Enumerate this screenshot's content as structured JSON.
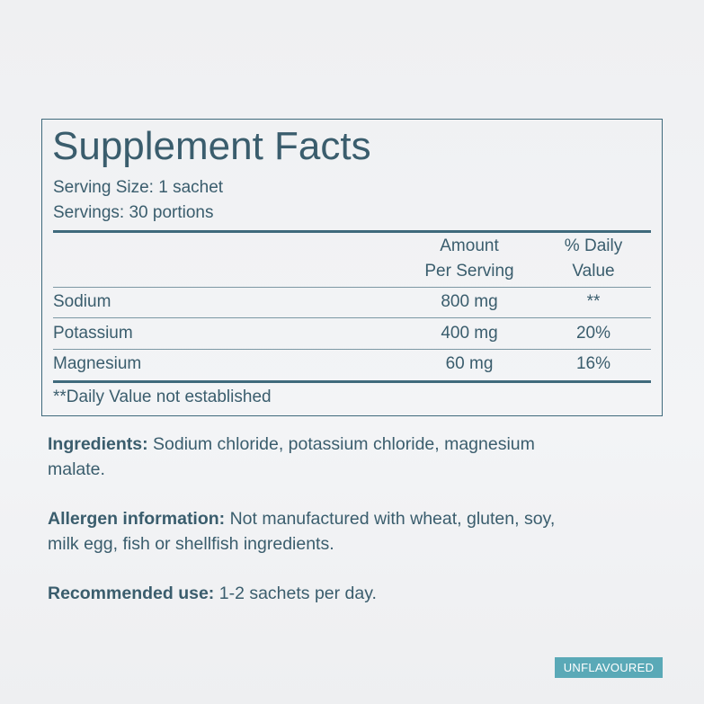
{
  "facts": {
    "title": "Supplement Facts",
    "serving_size": "Serving Size: 1 sachet",
    "servings": "Servings: 30 portions",
    "header": {
      "amount": [
        "Amount",
        "Per Serving"
      ],
      "daily_value": [
        "% Daily",
        "Value"
      ]
    },
    "rows": [
      [
        "Sodium",
        "800 mg",
        "**"
      ],
      [
        "Potassium",
        "400 mg",
        "20%"
      ],
      [
        "Magnesium",
        "60 mg",
        "16%"
      ]
    ],
    "footnote": "**Daily Value not established"
  },
  "info": [
    {
      "label": "Ingredients:",
      "lines": [
        "Sodium chloride, potassium chloride, magnesium",
        "malate."
      ]
    },
    {
      "label": "Allergen information:",
      "lines": [
        "Not manufactured with wheat, gluten, soy,",
        "milk egg, fish or shellfish ingredients."
      ]
    },
    {
      "label": "Recommended use:",
      "lines": [
        "1-2 sachets per day."
      ]
    }
  ],
  "badge": "UNFLAVOURED"
}
